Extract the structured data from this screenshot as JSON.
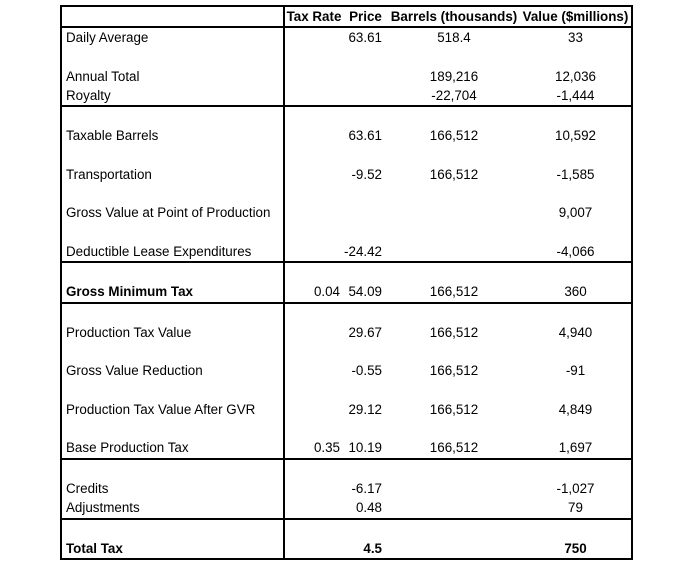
{
  "table": {
    "columns": [
      {
        "id": "label",
        "header": ""
      },
      {
        "id": "tax_rate",
        "header": "Tax Rate"
      },
      {
        "id": "price",
        "header": "Price"
      },
      {
        "id": "barrels",
        "header": "Barrels (thousands)"
      },
      {
        "id": "value",
        "header": "Value ($millions)"
      }
    ],
    "rows": [
      {
        "label": "Daily Average",
        "tax_rate": "",
        "price": "63.61",
        "barrels": "518.4",
        "value": "33"
      },
      {
        "blank": true,
        "label": "",
        "tax_rate": "",
        "price": "",
        "barrels": "",
        "value": ""
      },
      {
        "label": "Annual Total",
        "tax_rate": "",
        "price": "",
        "barrels": "189,216",
        "value": "12,036"
      },
      {
        "label": "Royalty",
        "tax_rate": "",
        "price": "",
        "barrels": "-22,704",
        "value": "-1,444",
        "border_bottom": true
      },
      {
        "blank": true,
        "label": "",
        "tax_rate": "",
        "price": "",
        "barrels": "",
        "value": ""
      },
      {
        "label": "Taxable Barrels",
        "tax_rate": "",
        "price": "63.61",
        "barrels": "166,512",
        "value": "10,592"
      },
      {
        "blank": true,
        "label": "",
        "tax_rate": "",
        "price": "",
        "barrels": "",
        "value": ""
      },
      {
        "label": "Transportation",
        "tax_rate": "",
        "price": "-9.52",
        "barrels": "166,512",
        "value": "-1,585"
      },
      {
        "blank": true,
        "label": "",
        "tax_rate": "",
        "price": "",
        "barrels": "",
        "value": ""
      },
      {
        "label": "Gross Value at Point of Production",
        "tax_rate": "",
        "price": "",
        "barrels": "",
        "value": "9,007"
      },
      {
        "blank": true,
        "label": "",
        "tax_rate": "",
        "price": "",
        "barrels": "",
        "value": ""
      },
      {
        "label": "Deductible Lease Expenditures",
        "tax_rate": "",
        "price": "-24.42",
        "barrels": "",
        "value": "-4,066",
        "border_bottom": true
      },
      {
        "blank": true,
        "label": "",
        "tax_rate": "",
        "price": "",
        "barrels": "",
        "value": ""
      },
      {
        "label": "Gross Minimum Tax",
        "tax_rate": "0.04",
        "price": "54.09",
        "barrels": "166,512",
        "value": "360",
        "bold_label": true,
        "border_bottom": true
      },
      {
        "blank": true,
        "label": "",
        "tax_rate": "",
        "price": "",
        "barrels": "",
        "value": ""
      },
      {
        "label": "Production Tax Value",
        "tax_rate": "",
        "price": "29.67",
        "barrels": "166,512",
        "value": "4,940"
      },
      {
        "blank": true,
        "label": "",
        "tax_rate": "",
        "price": "",
        "barrels": "",
        "value": ""
      },
      {
        "label": "Gross Value Reduction",
        "tax_rate": "",
        "price": "-0.55",
        "barrels": "166,512",
        "value": "-91"
      },
      {
        "blank": true,
        "label": "",
        "tax_rate": "",
        "price": "",
        "barrels": "",
        "value": ""
      },
      {
        "label": "Production Tax Value After GVR",
        "tax_rate": "",
        "price": "29.12",
        "barrels": "166,512",
        "value": "4,849"
      },
      {
        "blank": true,
        "label": "",
        "tax_rate": "",
        "price": "",
        "barrels": "",
        "value": ""
      },
      {
        "label": "Base Production Tax",
        "tax_rate": "0.35",
        "price": "10.19",
        "barrels": "166,512",
        "value": "1,697",
        "border_bottom": true
      },
      {
        "blank": true,
        "label": "",
        "tax_rate": "",
        "price": "",
        "barrels": "",
        "value": ""
      },
      {
        "label": "Credits",
        "tax_rate": "",
        "price": "-6.17",
        "barrels": "",
        "value": "-1,027"
      },
      {
        "label": "Adjustments",
        "tax_rate": "",
        "price": "0.48",
        "barrels": "",
        "value": "79",
        "border_bottom": true
      },
      {
        "blank": true,
        "label": "",
        "tax_rate": "",
        "price": "",
        "barrels": "",
        "value": ""
      },
      {
        "label": "Total Tax",
        "tax_rate": "",
        "price": "4.5",
        "barrels": "",
        "value": "750",
        "bold_row": true
      }
    ]
  },
  "colors": {
    "background": "#ffffff",
    "text": "#000000",
    "border": "#000000"
  }
}
